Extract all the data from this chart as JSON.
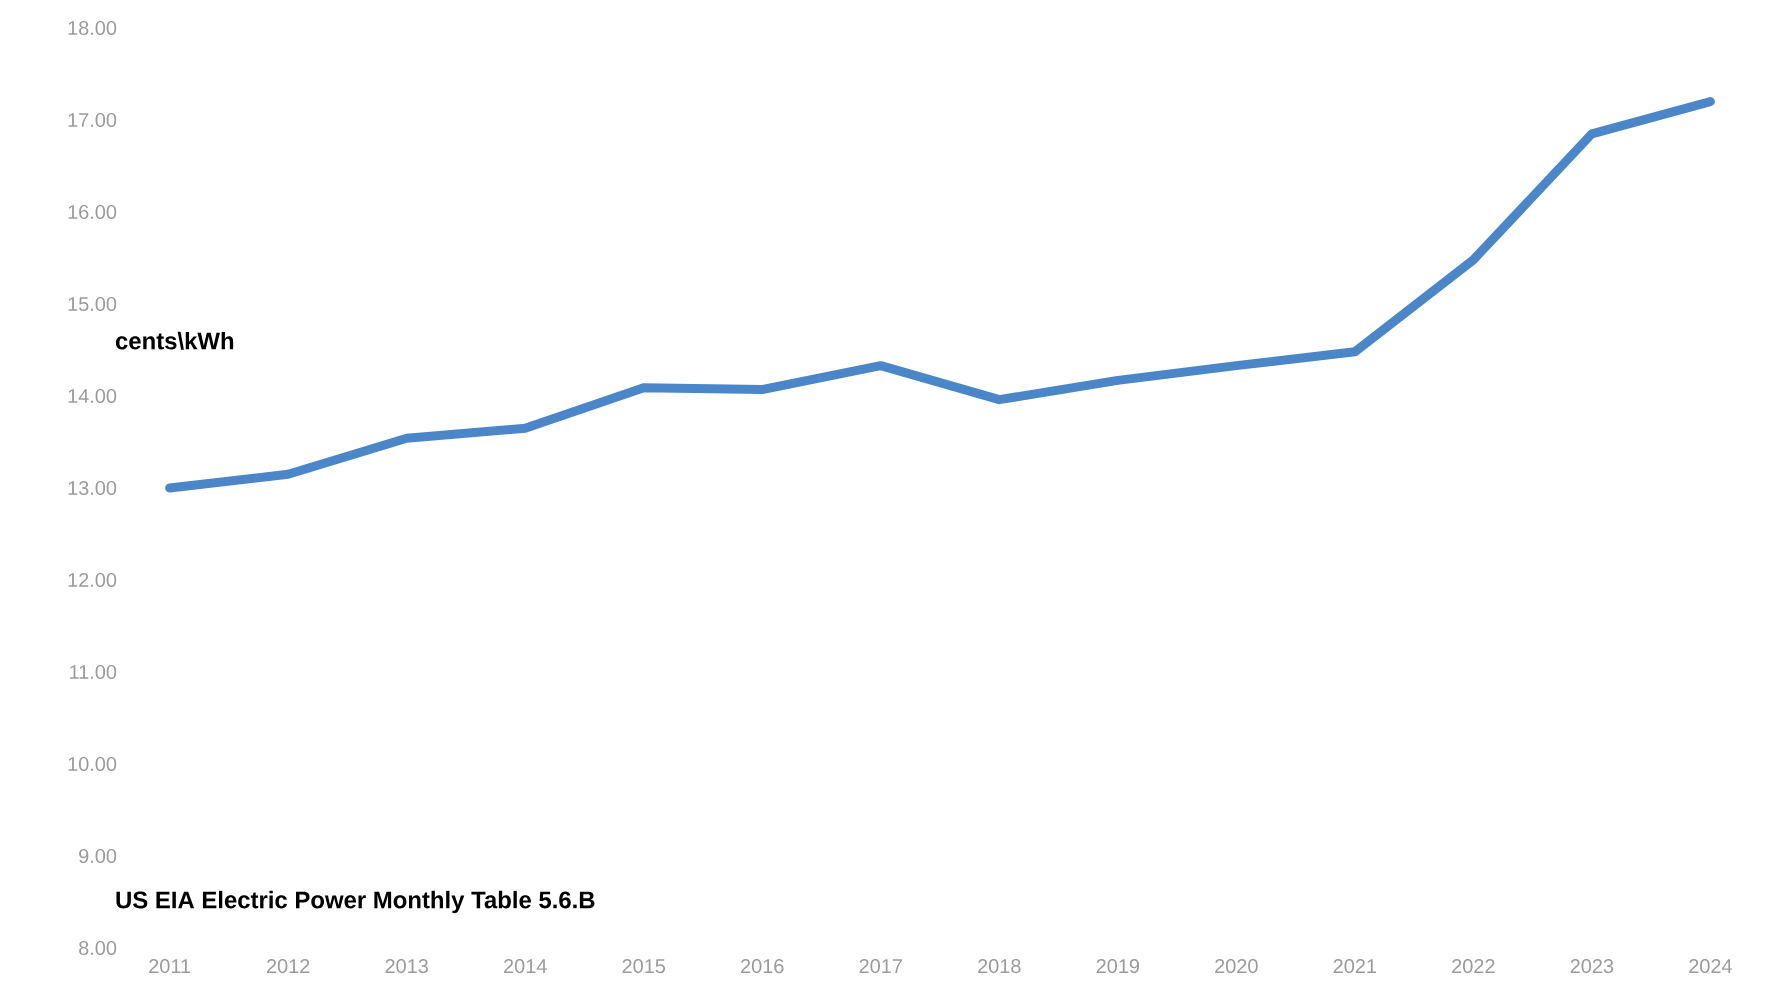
{
  "chart_data": {
    "type": "line",
    "ylabel": "cents\\kWh",
    "annotations": [
      "US EIA Electric Power Monthly Table 5.6.B"
    ],
    "categories": [
      "2011",
      "2012",
      "2013",
      "2014",
      "2015",
      "2016",
      "2017",
      "2018",
      "2019",
      "2020",
      "2021",
      "2022",
      "2023",
      "2024"
    ],
    "series": [
      {
        "color": "#4a86c8",
        "values": [
          13.0,
          13.15,
          13.54,
          13.65,
          14.09,
          14.07,
          14.33,
          13.96,
          14.17,
          14.33,
          14.48,
          15.48,
          16.85,
          17.2
        ]
      }
    ],
    "ylim": [
      8,
      18
    ],
    "yticks": [
      {
        "value": 8,
        "label": "8.00"
      },
      {
        "value": 9,
        "label": "9.00"
      },
      {
        "value": 10,
        "label": "10.00"
      },
      {
        "value": 11,
        "label": "11.00"
      },
      {
        "value": 12,
        "label": "12.00"
      },
      {
        "value": 13,
        "label": "13.00"
      },
      {
        "value": 14,
        "label": "14.00"
      },
      {
        "value": 15,
        "label": "15.00"
      },
      {
        "value": 16,
        "label": "16.00"
      },
      {
        "value": 17,
        "label": "17.00"
      },
      {
        "value": 18,
        "label": "18.00"
      }
    ],
    "marker": "none",
    "line_style": "solid"
  }
}
